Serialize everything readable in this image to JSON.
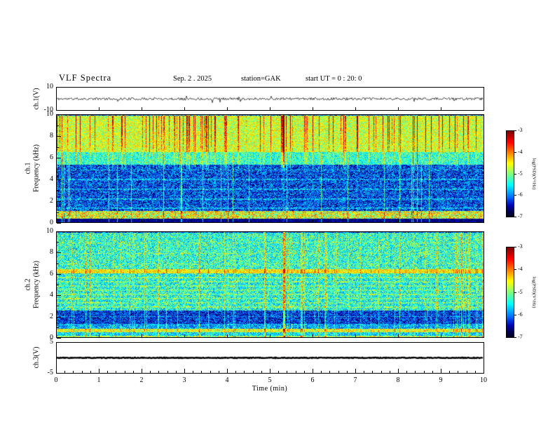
{
  "chart_data": {
    "type": "heatmap",
    "title": "VLF  Spectra",
    "header": {
      "date": "Sep. 2  . 2025",
      "station": "station=GAK",
      "start_ut": "start UT =   0 : 20: 0"
    },
    "x": {
      "label": "Time  (min)",
      "range": [
        0,
        10
      ],
      "major_ticks": [
        0,
        1,
        2,
        3,
        4,
        5,
        6,
        7,
        8,
        9,
        10
      ],
      "minor_step": 0.2
    },
    "colorbar": {
      "label": "log(PSD)(V²/Hz)",
      "range": [
        -7,
        -3
      ],
      "ticks": [
        "-3",
        "-4",
        "-5",
        "-6",
        "-7"
      ]
    },
    "panels": [
      {
        "id": "ch1_wave",
        "kind": "line",
        "ylabel": "ch.1(V)",
        "ylim": [
          -10,
          10
        ],
        "ytick_labels": [
          "10",
          "-10"
        ],
        "noise_v": 1.1,
        "spike_prob": 0.02,
        "spike_amp": 3.5,
        "line_width": 0.7,
        "seed": 11,
        "description": "ch.1 broadband VLF waveform: continuous noise of roughly ±2 V about 0 V with sporadic larger impulses over the 10 minute record"
      },
      {
        "id": "ch1_spec",
        "kind": "spectrogram",
        "ylabel_line1": "ch.1",
        "ylabel_line2": "Frequency (kHz)",
        "ylim": [
          0,
          10
        ],
        "yticks": [
          0,
          2,
          4,
          6,
          8,
          10
        ],
        "seed": 101,
        "bands": [
          {
            "f0": 0.0,
            "f1": 0.35,
            "base": 0.1,
            "var": 0.08
          },
          {
            "f0": 0.35,
            "f1": 1.05,
            "base": 0.6,
            "var": 0.22
          },
          {
            "f0": 1.05,
            "f1": 5.4,
            "base": 0.2,
            "var": 0.16
          },
          {
            "f0": 5.4,
            "f1": 6.6,
            "base": 0.42,
            "var": 0.14
          },
          {
            "f0": 6.6,
            "f1": 10.0,
            "base": 0.58,
            "var": 0.14
          }
        ],
        "hlines": [
          1.35,
          2.2,
          3.1,
          4.0,
          4.9
        ],
        "hline_boost": 0.1,
        "streak_prob": 0.14,
        "streak_min": 0.12,
        "streak_max": 0.38,
        "streak_weight": "high",
        "line_prob": 0.05,
        "line_boost": 0.22,
        "strong_streaks": [
          5.3
        ],
        "description": "ch.1 spectrogram: intense green/yellow hiss above ~6 kHz with dense red vertical sferic striations; weak dark-blue background 1-5 kHz crossed by cyan vertical impulses; bright yellow-green band near 0.4-1 kHz"
      },
      {
        "id": "ch2_spec",
        "kind": "spectrogram",
        "ylabel_line1": "ch.2",
        "ylabel_line2": "Frequency (kHz)",
        "ylim": [
          0,
          10
        ],
        "yticks": [
          0,
          2,
          4,
          6,
          8,
          10
        ],
        "seed": 202,
        "bands": [
          {
            "f0": 0.0,
            "f1": 0.2,
            "base": 0.55,
            "var": 0.2
          },
          {
            "f0": 0.2,
            "f1": 0.5,
            "base": 0.35,
            "var": 0.15
          },
          {
            "f0": 0.5,
            "f1": 0.85,
            "base": 0.6,
            "var": 0.15
          },
          {
            "f0": 0.85,
            "f1": 1.3,
            "base": 0.3,
            "var": 0.15
          },
          {
            "f0": 1.3,
            "f1": 2.6,
            "base": 0.18,
            "var": 0.14
          },
          {
            "f0": 2.6,
            "f1": 6.1,
            "base": 0.4,
            "var": 0.18
          },
          {
            "f0": 6.1,
            "f1": 6.5,
            "base": 0.64,
            "var": 0.12
          },
          {
            "f0": 6.5,
            "f1": 10.0,
            "base": 0.42,
            "var": 0.18
          }
        ],
        "hlines": [
          2.0,
          2.9,
          3.3,
          3.7,
          4.1,
          4.5,
          4.9,
          5.3,
          5.7,
          7.0,
          8.0,
          9.0
        ],
        "hline_boost": 0.08,
        "streak_prob": 0.1,
        "streak_min": 0.08,
        "streak_max": 0.22,
        "streak_weight": "flat",
        "line_prob": 0.0,
        "line_boost": 0.0,
        "strong_streaks": [
          5.32
        ],
        "description": "ch.2 spectrogram: mottled cyan/green speckle over blue background with narrow yellow band near 6.3 kHz, darker 1.3-2.6 kHz region, bright low-frequency lines below 1 kHz and a strong vertical event near 5.3 min"
      },
      {
        "id": "ch3_wave",
        "kind": "line",
        "ylabel": "ch.3(V)",
        "ylim": [
          -5,
          5
        ],
        "ytick_labels": [
          "5",
          "-5"
        ],
        "noise_v": 0.12,
        "spike_prob": 0,
        "spike_amp": 0,
        "line_width": 2.4,
        "seed": 33,
        "description": "ch.3 waveform: flat trace at 0 V for the whole interval (channel inactive)"
      }
    ]
  }
}
